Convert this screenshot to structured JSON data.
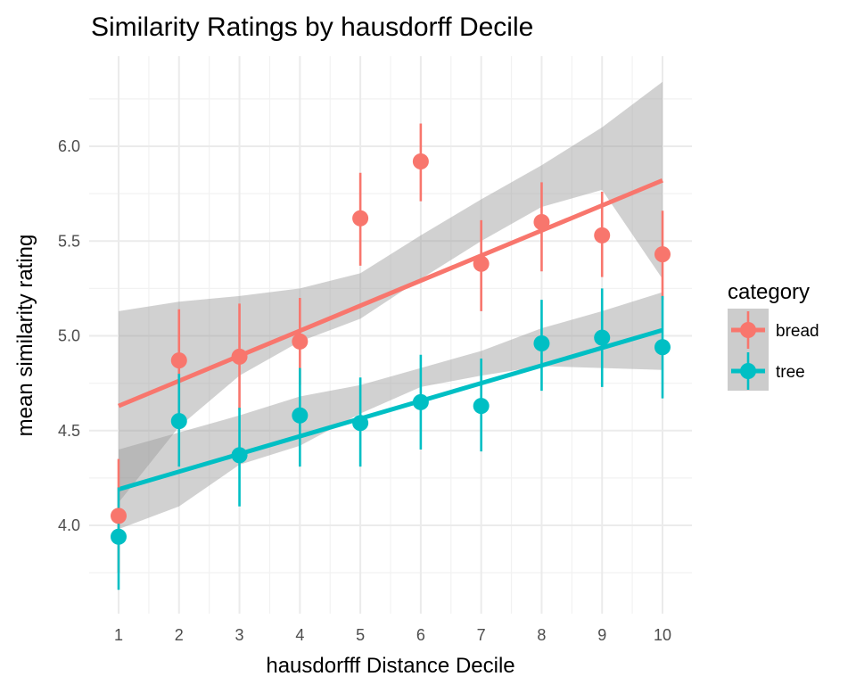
{
  "chart_data": {
    "type": "scatter",
    "title": "Similarity Ratings by hausdorff Decile",
    "xlabel": "hausdorfff Distance Decile",
    "ylabel": "mean similarity rating",
    "x": [
      1,
      2,
      3,
      4,
      5,
      6,
      7,
      8,
      9,
      10
    ],
    "x_ticks": [
      "1",
      "2",
      "3",
      "4",
      "5",
      "6",
      "7",
      "8",
      "9",
      "10"
    ],
    "y_ticks": [
      "4.0",
      "4.5",
      "5.0",
      "5.5",
      "6.0"
    ],
    "y_tick_values": [
      4.0,
      4.5,
      5.0,
      5.5,
      6.0
    ],
    "xlim": [
      0.5,
      10.5
    ],
    "ylim": [
      3.65,
      6.38
    ],
    "grid": true,
    "legend": {
      "title": "category",
      "position": "right"
    },
    "series": [
      {
        "name": "bread",
        "color": "#F8766D",
        "values": [
          4.05,
          4.87,
          4.89,
          4.97,
          5.62,
          5.92,
          5.38,
          5.6,
          5.53,
          5.43
        ],
        "error_low": [
          3.75,
          4.6,
          4.61,
          4.74,
          5.37,
          5.71,
          5.13,
          5.34,
          5.31,
          5.19
        ],
        "error_high": [
          4.35,
          5.14,
          5.17,
          5.2,
          5.86,
          6.12,
          5.61,
          5.81,
          5.76,
          5.66
        ],
        "fit": {
          "start": 4.63,
          "end": 5.82
        },
        "band": {
          "lower": [
            4.12,
            4.52,
            4.79,
            4.97,
            5.09,
            5.3,
            5.5,
            5.68,
            5.77,
            5.3
          ],
          "upper": [
            5.13,
            5.18,
            5.21,
            5.25,
            5.33,
            5.53,
            5.72,
            5.9,
            6.1,
            6.34
          ]
        }
      },
      {
        "name": "tree",
        "color": "#00BFC4",
        "values": [
          3.94,
          4.55,
          4.37,
          4.58,
          4.54,
          4.65,
          4.63,
          4.96,
          4.99,
          4.94
        ],
        "error_low": [
          3.66,
          4.31,
          4.1,
          4.31,
          4.31,
          4.4,
          4.39,
          4.71,
          4.73,
          4.67
        ],
        "error_high": [
          4.2,
          4.8,
          4.62,
          4.83,
          4.78,
          4.9,
          4.88,
          5.19,
          5.25,
          5.21
        ],
        "fit": {
          "start": 4.19,
          "end": 5.03
        },
        "band": {
          "lower": [
            3.98,
            4.1,
            4.32,
            4.42,
            4.59,
            4.73,
            4.79,
            4.84,
            4.83,
            4.82
          ],
          "upper": [
            4.4,
            4.49,
            4.58,
            4.68,
            4.74,
            4.83,
            4.92,
            5.04,
            5.13,
            5.23
          ]
        }
      }
    ]
  }
}
